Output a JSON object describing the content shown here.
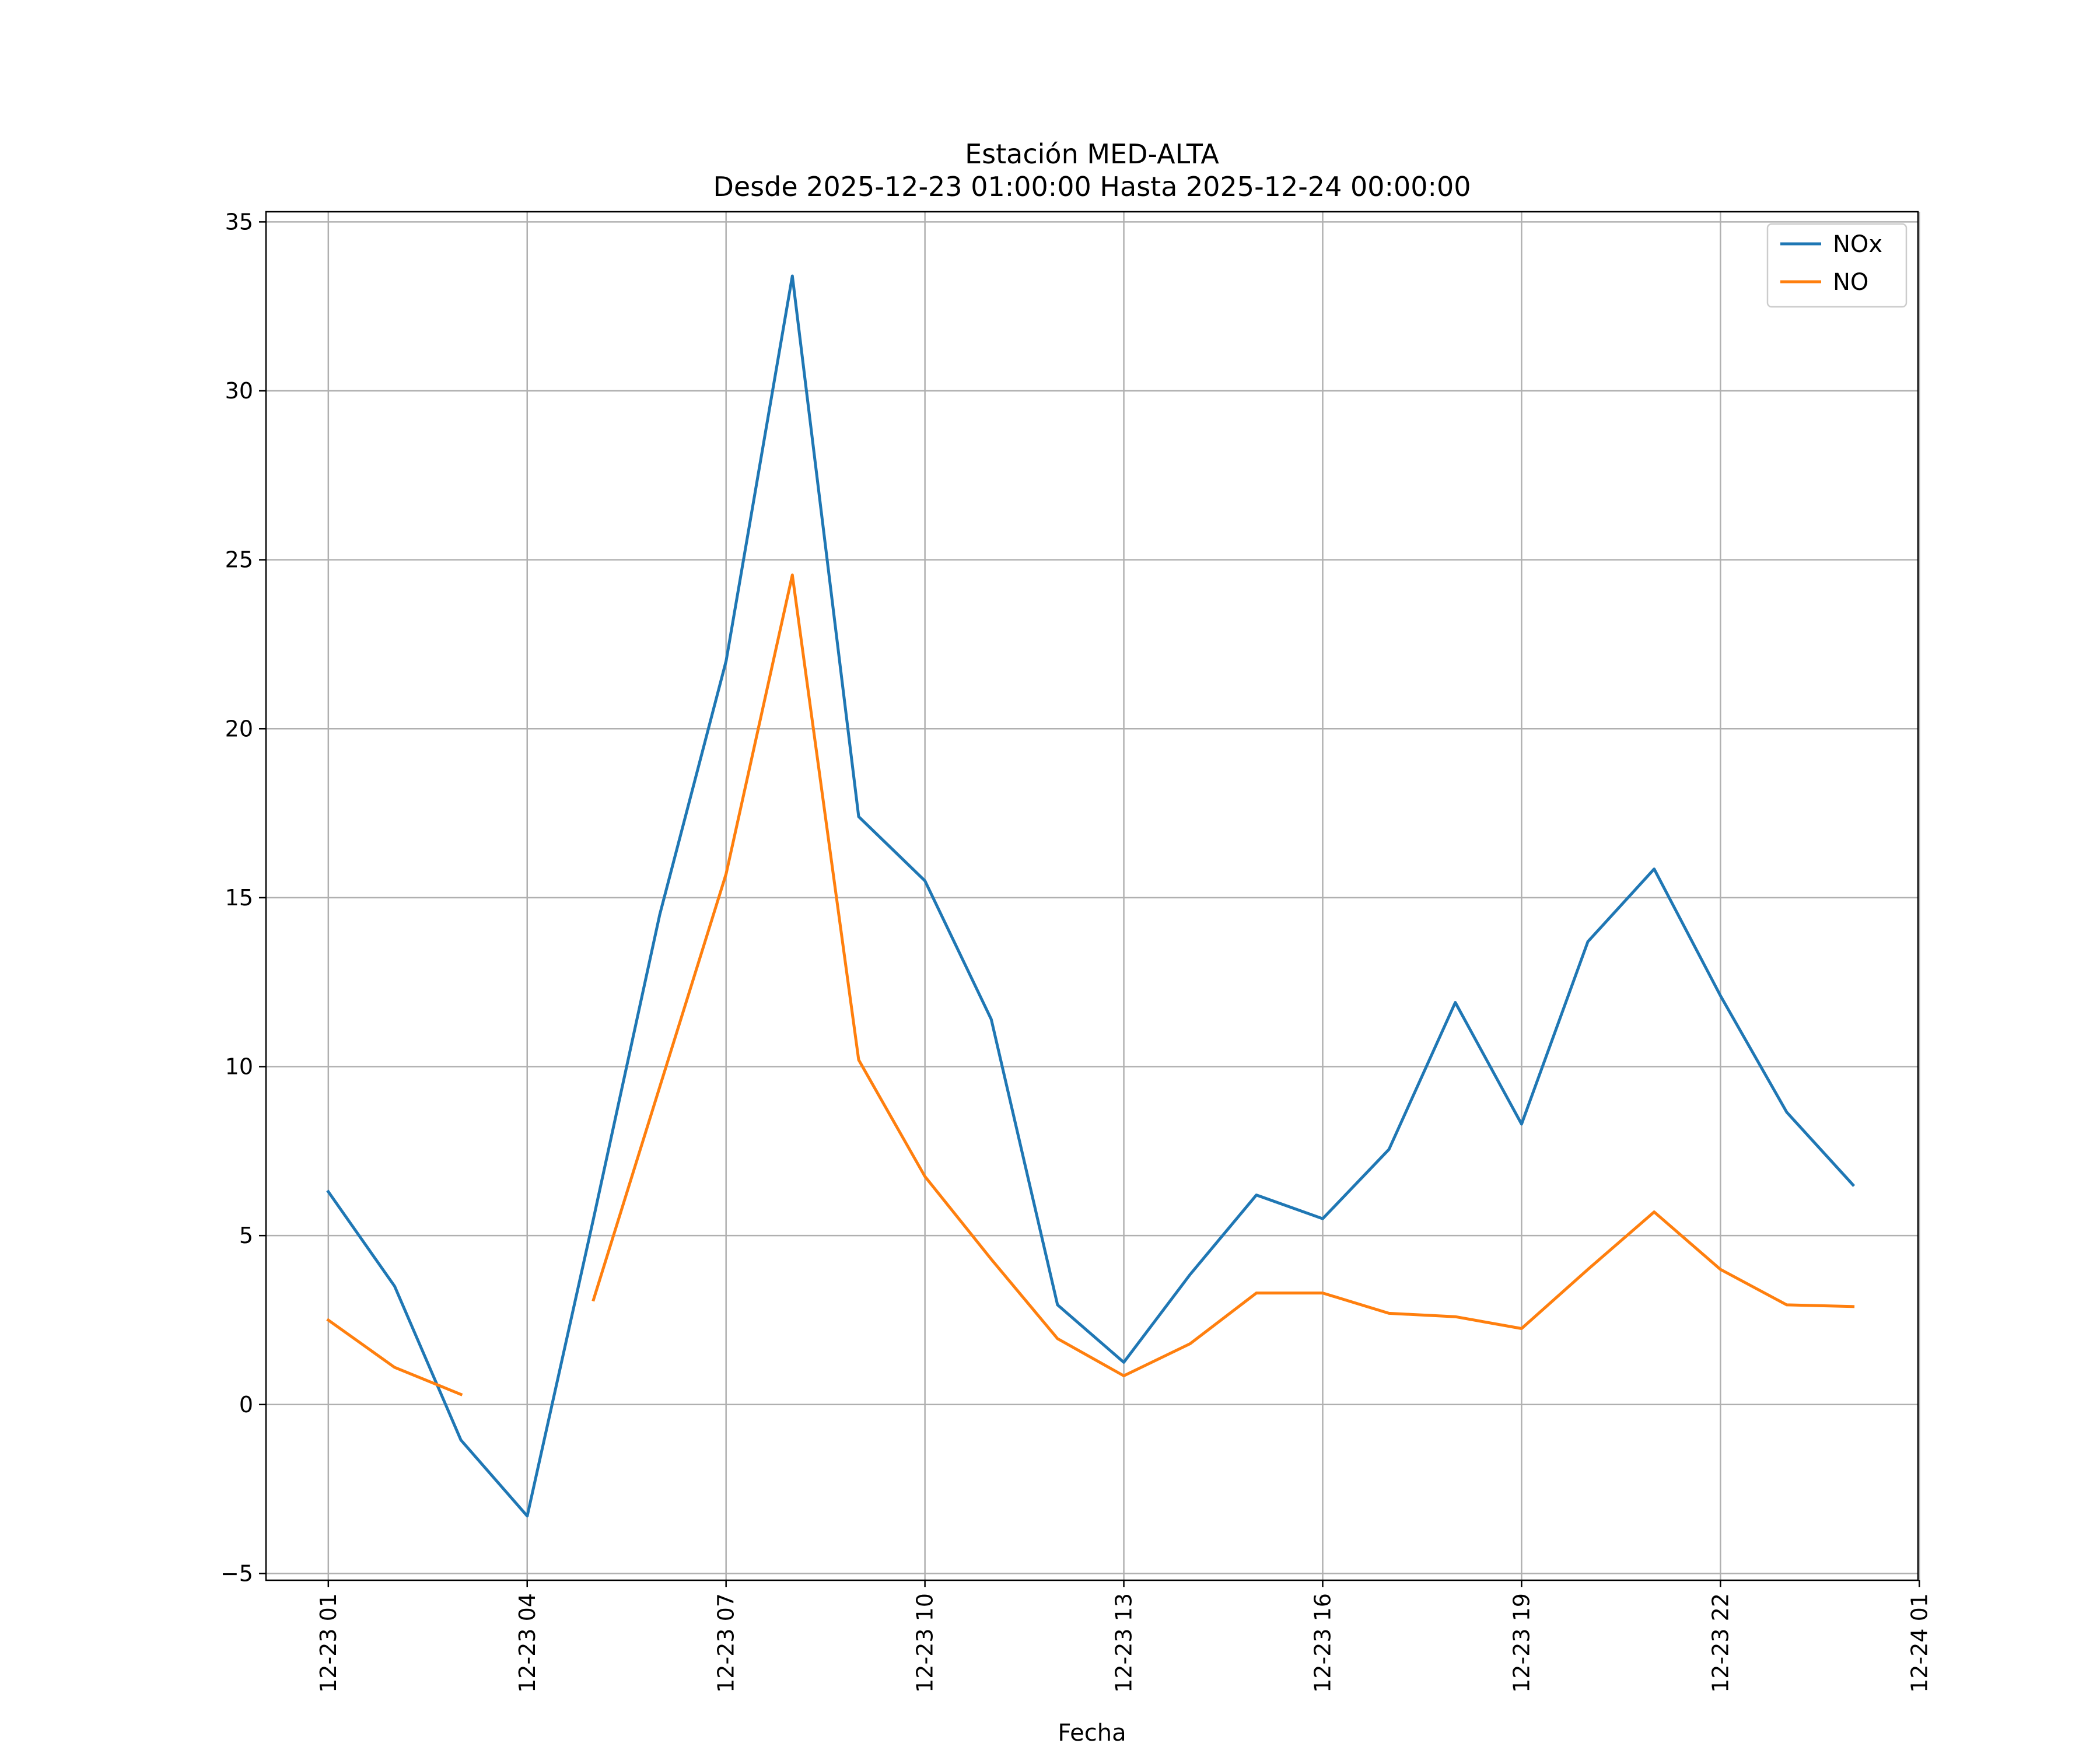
{
  "chart_data": {
    "type": "line",
    "title": "Estación MED-ALTA",
    "subtitle": "Desde 2025-12-23 01:00:00 Hasta 2025-12-24 00:00:00",
    "xlabel": "Fecha",
    "ylabel": "",
    "x_hours": [
      1,
      2,
      3,
      4,
      5,
      6,
      7,
      8,
      9,
      10,
      11,
      12,
      13,
      14,
      15,
      16,
      17,
      18,
      19,
      20,
      21,
      22,
      23,
      24
    ],
    "xlim": [
      0.06,
      24.98
    ],
    "ylim": [
      -5.2,
      35.3
    ],
    "x_ticks": [
      {
        "value": 1,
        "label": "12-23 01"
      },
      {
        "value": 4,
        "label": "12-23 04"
      },
      {
        "value": 7,
        "label": "12-23 07"
      },
      {
        "value": 10,
        "label": "12-23 10"
      },
      {
        "value": 13,
        "label": "12-23 13"
      },
      {
        "value": 16,
        "label": "12-23 16"
      },
      {
        "value": 19,
        "label": "12-23 19"
      },
      {
        "value": 22,
        "label": "12-23 22"
      },
      {
        "value": 25,
        "label": "12-24 01"
      }
    ],
    "y_ticks": [
      {
        "value": -5,
        "label": "−5"
      },
      {
        "value": 0,
        "label": "0"
      },
      {
        "value": 5,
        "label": "5"
      },
      {
        "value": 10,
        "label": "10"
      },
      {
        "value": 15,
        "label": "15"
      },
      {
        "value": 20,
        "label": "20"
      },
      {
        "value": 25,
        "label": "25"
      },
      {
        "value": 30,
        "label": "30"
      },
      {
        "value": 35,
        "label": "35"
      }
    ],
    "grid": true,
    "legend_position": "top-right",
    "series": [
      {
        "name": "NOx",
        "color": "#1f77b4",
        "values": [
          6.3,
          3.5,
          -1.05,
          -3.3,
          5.5,
          14.5,
          22.0,
          33.4,
          17.4,
          15.5,
          11.4,
          2.95,
          1.25,
          3.85,
          6.2,
          5.5,
          7.55,
          11.9,
          8.3,
          13.7,
          15.85,
          12.1,
          8.65,
          6.5
        ]
      },
      {
        "name": "NO",
        "color": "#ff7f0e",
        "values": [
          2.5,
          1.1,
          0.3,
          null,
          3.1,
          9.4,
          15.7,
          24.55,
          10.2,
          6.75,
          4.3,
          1.95,
          0.85,
          1.8,
          3.3,
          3.3,
          2.7,
          2.6,
          2.25,
          4.0,
          5.7,
          4.0,
          2.95,
          2.9
        ]
      }
    ]
  }
}
